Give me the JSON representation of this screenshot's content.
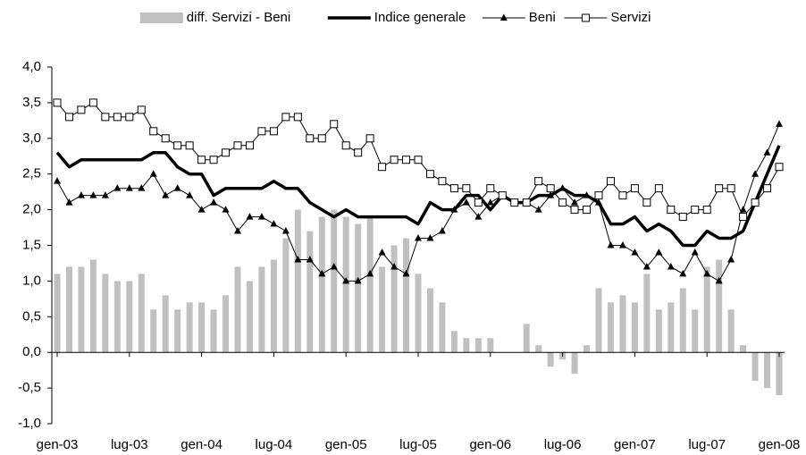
{
  "chart_data": {
    "type": "combo",
    "categories": [
      "gen-03",
      null,
      null,
      null,
      null,
      null,
      "lug-03",
      null,
      null,
      null,
      null,
      null,
      "gen-04",
      null,
      null,
      null,
      null,
      null,
      "lug-04",
      null,
      null,
      null,
      null,
      null,
      "gen-05",
      null,
      null,
      null,
      null,
      null,
      "lug-05",
      null,
      null,
      null,
      null,
      null,
      "gen-06",
      null,
      null,
      null,
      null,
      null,
      "lug-06",
      null,
      null,
      null,
      null,
      null,
      "gen-07",
      null,
      null,
      null,
      null,
      null,
      "lug-07",
      null,
      null,
      null,
      null,
      null,
      "gen-08"
    ],
    "series": [
      {
        "name": "diff. Servizi - Beni",
        "type": "bar",
        "color": "#c0c0c0",
        "values": [
          1.1,
          1.2,
          1.2,
          1.3,
          1.1,
          1.0,
          1.0,
          1.1,
          0.6,
          0.8,
          0.6,
          0.7,
          0.7,
          0.6,
          0.8,
          1.2,
          1.0,
          1.2,
          1.3,
          1.6,
          2.0,
          1.7,
          1.9,
          2.0,
          1.9,
          1.8,
          1.9,
          1.2,
          1.5,
          1.6,
          1.1,
          0.9,
          0.7,
          0.3,
          0.2,
          0.2,
          0.2,
          0.0,
          0.0,
          0.4,
          0.1,
          -0.2,
          -0.1,
          -0.3,
          0.1,
          0.9,
          0.7,
          0.8,
          0.7,
          1.1,
          0.6,
          0.7,
          0.9,
          0.6,
          1.2,
          1.3,
          0.6,
          0.1,
          -0.4,
          -0.5,
          -0.6
        ]
      },
      {
        "name": "Indice generale",
        "type": "line",
        "color": "#000000",
        "marker": "none",
        "width": 3.5,
        "values": [
          2.8,
          2.6,
          2.7,
          2.7,
          2.7,
          2.7,
          2.7,
          2.7,
          2.8,
          2.8,
          2.6,
          2.5,
          2.5,
          2.2,
          2.3,
          2.3,
          2.3,
          2.3,
          2.4,
          2.3,
          2.3,
          2.1,
          2.0,
          1.9,
          2.0,
          1.9,
          1.9,
          1.9,
          1.9,
          1.9,
          1.8,
          2.1,
          2.0,
          2.0,
          2.2,
          2.2,
          2.0,
          2.2,
          2.1,
          2.1,
          2.2,
          2.2,
          2.3,
          2.2,
          2.2,
          2.1,
          1.8,
          1.8,
          1.9,
          1.7,
          1.8,
          1.7,
          1.5,
          1.5,
          1.7,
          1.6,
          1.6,
          1.7,
          2.1,
          2.5,
          2.9
        ]
      },
      {
        "name": "Beni",
        "type": "line",
        "color": "#000000",
        "marker": "triangle",
        "width": 1,
        "values": [
          2.4,
          2.1,
          2.2,
          2.2,
          2.2,
          2.3,
          2.3,
          2.3,
          2.5,
          2.2,
          2.3,
          2.2,
          2.0,
          2.1,
          2.0,
          1.7,
          1.9,
          1.9,
          1.8,
          1.7,
          1.3,
          1.3,
          1.1,
          1.2,
          1.0,
          1.0,
          1.1,
          1.4,
          1.2,
          1.1,
          1.6,
          1.6,
          1.7,
          2.0,
          2.1,
          1.9,
          2.1,
          2.2,
          2.1,
          2.1,
          2.0,
          2.2,
          2.3,
          2.1,
          2.2,
          2.1,
          1.5,
          1.5,
          1.4,
          1.2,
          1.4,
          1.2,
          1.1,
          1.4,
          1.1,
          1.0,
          1.3,
          2.0,
          2.5,
          2.8,
          3.2
        ]
      },
      {
        "name": "Servizi",
        "type": "line",
        "color": "#000000",
        "marker": "square",
        "width": 1,
        "values": [
          3.5,
          3.3,
          3.4,
          3.5,
          3.3,
          3.3,
          3.3,
          3.4,
          3.1,
          3.0,
          2.9,
          2.9,
          2.7,
          2.7,
          2.8,
          2.9,
          2.9,
          3.1,
          3.1,
          3.3,
          3.3,
          3.0,
          3.0,
          3.2,
          2.9,
          2.8,
          3.0,
          2.6,
          2.7,
          2.7,
          2.7,
          2.5,
          2.4,
          2.3,
          2.3,
          2.1,
          2.3,
          2.2,
          2.1,
          2.1,
          2.4,
          2.3,
          2.1,
          2.0,
          2.0,
          2.2,
          2.4,
          2.2,
          2.3,
          2.1,
          2.3,
          2.0,
          1.9,
          2.0,
          2.0,
          2.3,
          2.3,
          1.9,
          2.1,
          2.3,
          2.6
        ]
      }
    ],
    "ylim": [
      -1,
      4
    ],
    "yticks": [
      {
        "value": -1,
        "label": "-1,0"
      },
      {
        "value": -0.5,
        "label": "-0,5"
      },
      {
        "value": 0,
        "label": "0,0"
      },
      {
        "value": 0.5,
        "label": "0,5"
      },
      {
        "value": 1,
        "label": "1,0"
      },
      {
        "value": 1.5,
        "label": "1,5"
      },
      {
        "value": 2,
        "label": "2,0"
      },
      {
        "value": 2.5,
        "label": "2,5"
      },
      {
        "value": 3,
        "label": "3,0"
      },
      {
        "value": 3.5,
        "label": "3,5"
      },
      {
        "value": 4,
        "label": "4,0"
      }
    ],
    "legend": "top"
  }
}
